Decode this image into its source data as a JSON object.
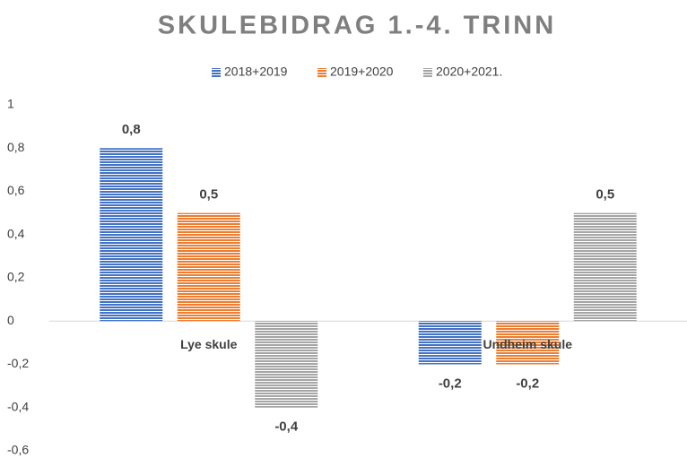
{
  "chart_data": {
    "type": "bar",
    "title": "SKULEBIDRAG 1.-4. TRINN",
    "categories": [
      "Lye skule",
      "Undheim skule"
    ],
    "series": [
      {
        "name": "2018+2019",
        "color": "#4472c4",
        "values": [
          0.8,
          -0.2
        ],
        "value_labels": [
          "0,8",
          "-0,2"
        ]
      },
      {
        "name": "2019+2020",
        "color": "#ed7d31",
        "values": [
          0.5,
          -0.2
        ],
        "value_labels": [
          "0,5",
          "-0,2"
        ]
      },
      {
        "name": "2020+2021.",
        "color": "#a5a5a5",
        "values": [
          -0.4,
          0.5
        ],
        "value_labels": [
          "-0,4",
          "0,5"
        ]
      }
    ],
    "ylim": [
      -0.6,
      1
    ],
    "yticks": [
      {
        "value": -0.6,
        "label": "-0,6"
      },
      {
        "value": -0.4,
        "label": "-0,4"
      },
      {
        "value": -0.2,
        "label": "-0,2"
      },
      0,
      {
        "value": 0.2,
        "label": "0,2"
      },
      {
        "value": 0.4,
        "label": "0,4"
      },
      {
        "value": 0.6,
        "label": "0,6"
      },
      {
        "value": 0.8,
        "label": "0,8"
      },
      1
    ],
    "grid": false,
    "legend": "top"
  }
}
